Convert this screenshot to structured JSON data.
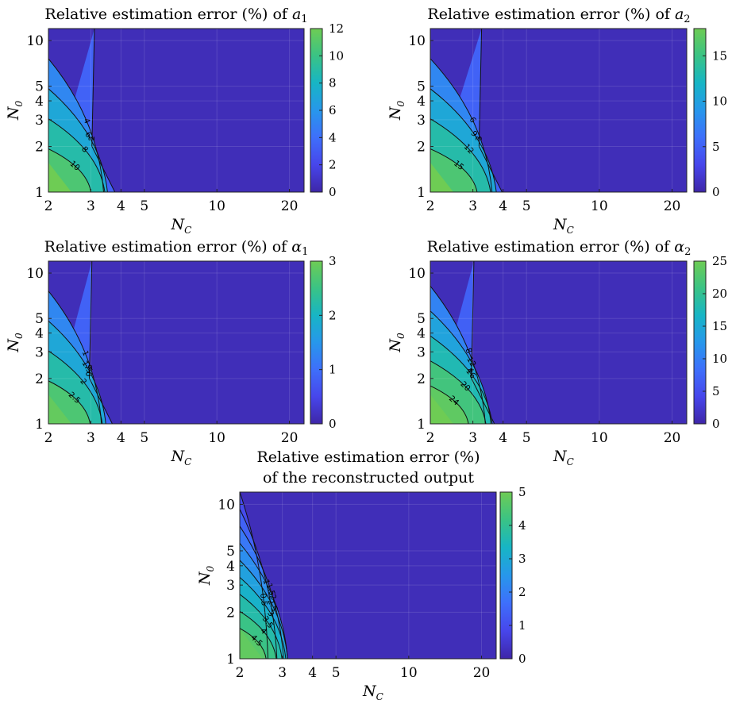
{
  "chart_data": [
    {
      "type": "contour",
      "title": "Relative estimation error (%) of ",
      "title_symbol": "a",
      "title_sub": "1",
      "xlabel": "N",
      "xlabel_sub": "C",
      "ylabel": "N",
      "ylabel_sub": "0",
      "xscale": "log",
      "yscale": "log",
      "xlim": [
        2,
        23
      ],
      "ylim": [
        1,
        12
      ],
      "xticks": [
        "2",
        "3",
        "4",
        "5",
        "10",
        "20"
      ],
      "yticks": [
        "1",
        "2",
        "3",
        "4",
        "5",
        "10"
      ],
      "colorbar": {
        "min": 0,
        "max": 12,
        "ticks": [
          "0",
          "2",
          "4",
          "6",
          "8",
          "10",
          "12"
        ]
      },
      "contour_levels": [
        "2",
        "4",
        "6",
        "8",
        "10"
      ],
      "value_at_origin": 12
    },
    {
      "type": "contour",
      "title": "Relative estimation error (%) of ",
      "title_symbol": "a",
      "title_sub": "2",
      "xlabel": "N",
      "xlabel_sub": "C",
      "ylabel": "N",
      "ylabel_sub": "0",
      "xscale": "log",
      "yscale": "log",
      "xlim": [
        2,
        23
      ],
      "ylim": [
        1,
        12
      ],
      "xticks": [
        "2",
        "3",
        "4",
        "5",
        "10",
        "20"
      ],
      "yticks": [
        "1",
        "2",
        "3",
        "4",
        "5",
        "10"
      ],
      "colorbar": {
        "min": 0,
        "max": 18,
        "ticks": [
          "0",
          "5",
          "10",
          "15"
        ]
      },
      "contour_levels": [
        "3",
        "6",
        "9",
        "12",
        "15"
      ],
      "value_at_origin": 18
    },
    {
      "type": "contour",
      "title": "Relative estimation error (%) of ",
      "title_symbol": "α",
      "title_sub": "1",
      "xlabel": "N",
      "xlabel_sub": "C",
      "ylabel": "N",
      "ylabel_sub": "0",
      "xscale": "log",
      "yscale": "log",
      "xlim": [
        2,
        23
      ],
      "ylim": [
        1,
        12
      ],
      "xticks": [
        "2",
        "3",
        "4",
        "5",
        "10",
        "20"
      ],
      "yticks": [
        "1",
        "2",
        "3",
        "4",
        "5",
        "10"
      ],
      "colorbar": {
        "min": 0,
        "max": 3,
        "ticks": [
          "0",
          "1",
          "2",
          "3"
        ]
      },
      "contour_levels": [
        "0.5",
        "1",
        "1.5",
        "2",
        "2.5"
      ],
      "value_at_origin": 2.9
    },
    {
      "type": "contour",
      "title": "Relative estimation error (%) of ",
      "title_symbol": "α",
      "title_sub": "2",
      "xlabel": "N",
      "xlabel_sub": "C",
      "ylabel": "N",
      "ylabel_sub": "0",
      "xscale": "log",
      "yscale": "log",
      "xlim": [
        2,
        23
      ],
      "ylim": [
        1,
        12
      ],
      "xticks": [
        "2",
        "3",
        "4",
        "5",
        "10",
        "20"
      ],
      "yticks": [
        "1",
        "2",
        "3",
        "4",
        "5",
        "10"
      ],
      "colorbar": {
        "min": 0,
        "max": 25,
        "ticks": [
          "0",
          "5",
          "10",
          "15",
          "20",
          "25"
        ]
      },
      "contour_levels": [
        "4",
        "8",
        "12",
        "16",
        "20",
        "24"
      ],
      "value_at_origin": 25
    },
    {
      "type": "contour",
      "title": "Relative estimation error (%)",
      "title_line2": "of the reconstructed output",
      "xlabel": "N",
      "xlabel_sub": "C",
      "ylabel": "N",
      "ylabel_sub": "0",
      "xscale": "log",
      "yscale": "log",
      "xlim": [
        2,
        23
      ],
      "ylim": [
        1,
        12
      ],
      "xticks": [
        "2",
        "3",
        "4",
        "5",
        "10",
        "20"
      ],
      "yticks": [
        "1",
        "2",
        "3",
        "4",
        "5",
        "10"
      ],
      "colorbar": {
        "min": 0,
        "max": 5,
        "ticks": [
          "0",
          "1",
          "2",
          "3",
          "4",
          "5"
        ]
      },
      "contour_levels": [
        "0.5",
        "1",
        "1.5",
        "2",
        "2.5",
        "3",
        "3.5",
        "4",
        "4.5"
      ],
      "value_at_origin": 4.8
    }
  ],
  "colormap": [
    "#3e26a8",
    "#4746eb",
    "#3e6ffb",
    "#2797eb",
    "#17b5c5",
    "#3ac385",
    "#6ecc54"
  ]
}
